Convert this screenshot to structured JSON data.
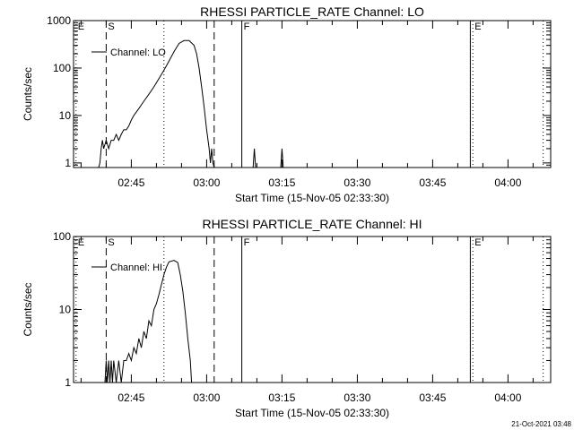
{
  "chart_data": [
    {
      "type": "line",
      "title": "RHESSI PARTICLE_RATE Channel: LO",
      "xlabel": "Start Time (15-Nov-05 02:33:30)",
      "ylabel": "Counts/sec",
      "y_scale": "log",
      "ylim": [
        0.8,
        1000
      ],
      "y_ticks": [
        {
          "value": 1,
          "label": "1"
        },
        {
          "value": 10,
          "label": "10"
        },
        {
          "value": 100,
          "label": "100"
        },
        {
          "value": 1000,
          "label": "1000"
        }
      ],
      "x_range": [
        "02:33:30",
        "04:08:30"
      ],
      "x_ticks": [
        {
          "value": "02:45",
          "label": "02:45"
        },
        {
          "value": "03:00",
          "label": "03:00"
        },
        {
          "value": "03:15",
          "label": "03:15"
        },
        {
          "value": "03:30",
          "label": "03:30"
        },
        {
          "value": "03:45",
          "label": "03:45"
        },
        {
          "value": "04:00",
          "label": "04:00"
        }
      ],
      "legend": {
        "entry": "Channel: LO",
        "position": "top-left"
      },
      "markers": [
        {
          "time": "02:34:00",
          "label": "E",
          "style": "dotted"
        },
        {
          "time": "02:40:00",
          "label": "S",
          "style": "dashed"
        },
        {
          "time": "02:51:30",
          "label": "",
          "style": "dotted"
        },
        {
          "time": "03:01:30",
          "label": "",
          "style": "dashed"
        },
        {
          "time": "03:07:00",
          "label": "F",
          "style": "solid"
        },
        {
          "time": "03:52:30",
          "label": "",
          "style": "solid"
        },
        {
          "time": "03:53:00",
          "label": "E",
          "style": "dotted"
        },
        {
          "time": "04:07:00",
          "label": "",
          "style": "dotted"
        }
      ],
      "series": [
        {
          "name": "Channel: LO",
          "points": [
            {
              "x": "02:38:30",
              "y": 0.8
            },
            {
              "x": "02:38:45",
              "y": 1
            },
            {
              "x": "02:39:00",
              "y": 2
            },
            {
              "x": "02:39:15",
              "y": 3
            },
            {
              "x": "02:39:30",
              "y": 2
            },
            {
              "x": "02:40:00",
              "y": 3
            },
            {
              "x": "02:40:30",
              "y": 2
            },
            {
              "x": "02:41:00",
              "y": 3
            },
            {
              "x": "02:41:30",
              "y": 3
            },
            {
              "x": "02:42:00",
              "y": 4
            },
            {
              "x": "02:42:30",
              "y": 3
            },
            {
              "x": "02:43:00",
              "y": 4
            },
            {
              "x": "02:43:30",
              "y": 5
            },
            {
              "x": "02:44:00",
              "y": 5
            },
            {
              "x": "02:44:30",
              "y": 6
            },
            {
              "x": "02:45:00",
              "y": 8
            },
            {
              "x": "02:45:30",
              "y": 10
            },
            {
              "x": "02:46:30",
              "y": 14
            },
            {
              "x": "02:47:30",
              "y": 20
            },
            {
              "x": "02:48:30",
              "y": 28
            },
            {
              "x": "02:49:30",
              "y": 40
            },
            {
              "x": "02:50:30",
              "y": 60
            },
            {
              "x": "02:51:30",
              "y": 90
            },
            {
              "x": "02:52:30",
              "y": 140
            },
            {
              "x": "02:53:30",
              "y": 220
            },
            {
              "x": "02:54:30",
              "y": 330
            },
            {
              "x": "02:55:30",
              "y": 380
            },
            {
              "x": "02:56:30",
              "y": 380
            },
            {
              "x": "02:57:30",
              "y": 300
            },
            {
              "x": "02:58:00",
              "y": 200
            },
            {
              "x": "02:58:30",
              "y": 100
            },
            {
              "x": "02:59:00",
              "y": 40
            },
            {
              "x": "02:59:30",
              "y": 15
            },
            {
              "x": "03:00:00",
              "y": 5
            },
            {
              "x": "03:00:30",
              "y": 2
            },
            {
              "x": "03:00:45",
              "y": 1
            },
            {
              "x": "03:01:00",
              "y": 2
            },
            {
              "x": "03:01:15",
              "y": 1
            },
            {
              "x": "03:01:30",
              "y": 0.8
            },
            {
              "x": "03:09:15",
              "y": 0.8
            },
            {
              "x": "03:09:30",
              "y": 2
            },
            {
              "x": "03:09:45",
              "y": 0.8
            },
            {
              "x": "03:14:45",
              "y": 0.8
            },
            {
              "x": "03:15:00",
              "y": 2
            },
            {
              "x": "03:15:15",
              "y": 0.8
            }
          ]
        }
      ]
    },
    {
      "type": "line",
      "title": "RHESSI PARTICLE_RATE Channel: HI",
      "xlabel": "Start Time (15-Nov-05 02:33:30)",
      "ylabel": "Counts/sec",
      "y_scale": "log",
      "ylim": [
        1,
        100
      ],
      "y_ticks": [
        {
          "value": 1,
          "label": "1"
        },
        {
          "value": 10,
          "label": "10"
        },
        {
          "value": 100,
          "label": "100"
        }
      ],
      "x_range": [
        "02:33:30",
        "04:08:30"
      ],
      "x_ticks": [
        {
          "value": "02:45",
          "label": "02:45"
        },
        {
          "value": "03:00",
          "label": "03:00"
        },
        {
          "value": "03:15",
          "label": "03:15"
        },
        {
          "value": "03:30",
          "label": "03:30"
        },
        {
          "value": "03:45",
          "label": "03:45"
        },
        {
          "value": "04:00",
          "label": "04:00"
        }
      ],
      "legend": {
        "entry": "Channel: HI",
        "position": "top-left"
      },
      "markers": [
        {
          "time": "02:34:00",
          "label": "E",
          "style": "dotted"
        },
        {
          "time": "02:40:00",
          "label": "S",
          "style": "dashed"
        },
        {
          "time": "02:51:30",
          "label": "",
          "style": "dotted"
        },
        {
          "time": "03:01:30",
          "label": "",
          "style": "dashed"
        },
        {
          "time": "03:07:00",
          "label": "F",
          "style": "solid"
        },
        {
          "time": "03:52:30",
          "label": "",
          "style": "solid"
        },
        {
          "time": "03:53:00",
          "label": "E",
          "style": "dotted"
        },
        {
          "time": "04:07:00",
          "label": "",
          "style": "dotted"
        }
      ],
      "series": [
        {
          "name": "Channel: HI",
          "points": [
            {
              "x": "02:39:45",
              "y": 1
            },
            {
              "x": "02:40:00",
              "y": 2
            },
            {
              "x": "02:40:15",
              "y": 1
            },
            {
              "x": "02:40:30",
              "y": 2
            },
            {
              "x": "02:40:45",
              "y": 1
            },
            {
              "x": "02:41:00",
              "y": 2
            },
            {
              "x": "02:41:15",
              "y": 1
            },
            {
              "x": "02:41:30",
              "y": 2
            },
            {
              "x": "02:42:00",
              "y": 1
            },
            {
              "x": "02:42:30",
              "y": 2
            },
            {
              "x": "02:43:00",
              "y": 1
            },
            {
              "x": "02:43:30",
              "y": 2
            },
            {
              "x": "02:44:00",
              "y": 2
            },
            {
              "x": "02:44:30",
              "y": 2.5
            },
            {
              "x": "02:45:00",
              "y": 2
            },
            {
              "x": "02:45:30",
              "y": 3
            },
            {
              "x": "02:46:00",
              "y": 2.5
            },
            {
              "x": "02:46:30",
              "y": 4
            },
            {
              "x": "02:47:00",
              "y": 3
            },
            {
              "x": "02:47:30",
              "y": 5
            },
            {
              "x": "02:48:00",
              "y": 4
            },
            {
              "x": "02:48:30",
              "y": 7
            },
            {
              "x": "02:49:00",
              "y": 6
            },
            {
              "x": "02:49:30",
              "y": 10
            },
            {
              "x": "02:50:00",
              "y": 12
            },
            {
              "x": "02:50:30",
              "y": 16
            },
            {
              "x": "02:51:00",
              "y": 22
            },
            {
              "x": "02:51:30",
              "y": 30
            },
            {
              "x": "02:52:00",
              "y": 38
            },
            {
              "x": "02:52:30",
              "y": 45
            },
            {
              "x": "02:53:30",
              "y": 47
            },
            {
              "x": "02:54:15",
              "y": 44
            },
            {
              "x": "02:54:45",
              "y": 30
            },
            {
              "x": "02:55:15",
              "y": 18
            },
            {
              "x": "02:55:45",
              "y": 9
            },
            {
              "x": "02:56:15",
              "y": 4
            },
            {
              "x": "02:56:45",
              "y": 2
            },
            {
              "x": "02:57:00",
              "y": 1
            }
          ]
        }
      ]
    }
  ],
  "footer": {
    "timestamp": "21-Oct-2021 03:48"
  }
}
